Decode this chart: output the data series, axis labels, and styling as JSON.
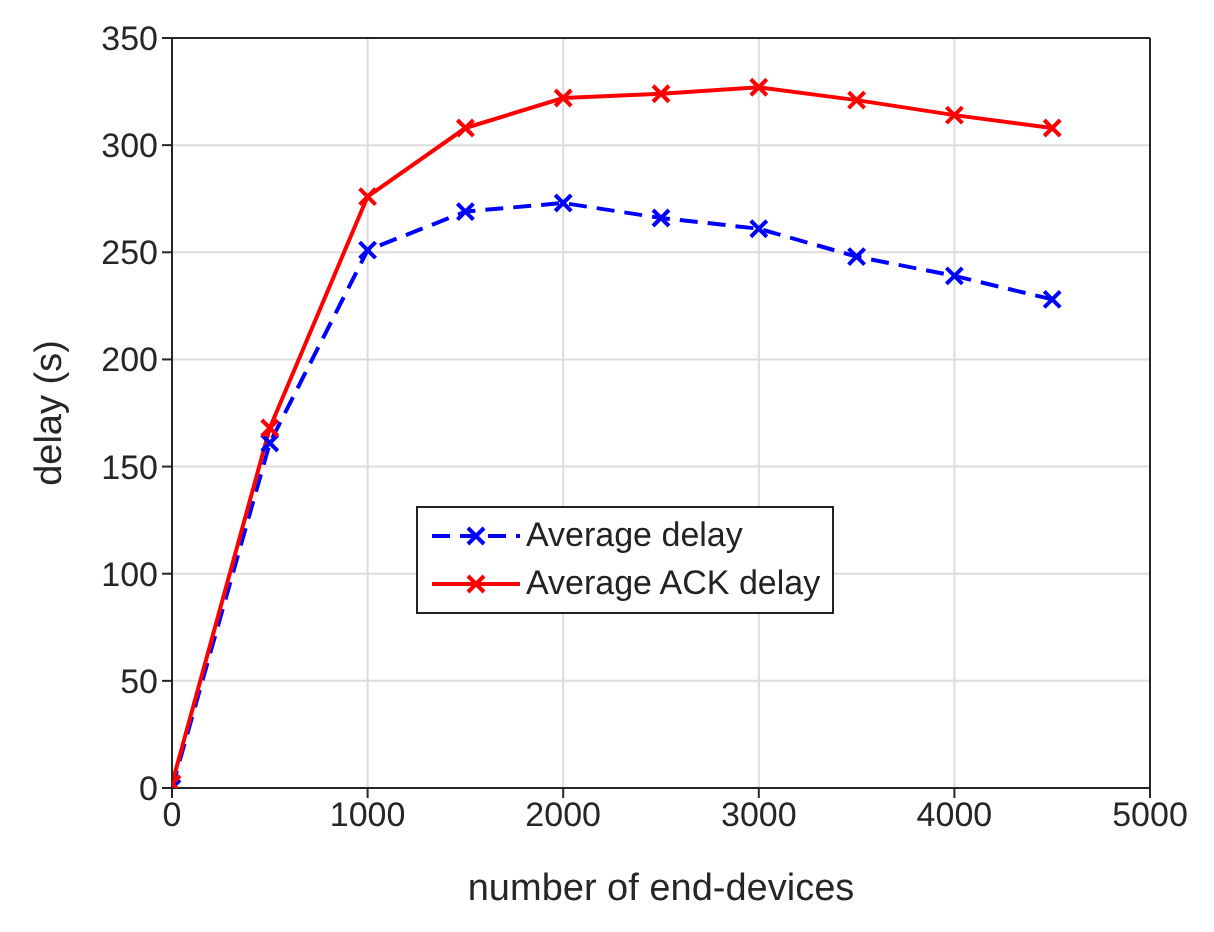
{
  "chart_data": {
    "type": "line",
    "xlabel": "number of end-devices",
    "ylabel": "delay (s)",
    "x": [
      0,
      500,
      1000,
      1500,
      2000,
      2500,
      3000,
      3500,
      4000,
      4500
    ],
    "series": [
      {
        "name": "Average delay",
        "color": "#0000ff",
        "line_style": "dashed",
        "values": [
          0,
          161,
          251,
          269,
          273,
          266,
          261,
          248,
          239,
          228
        ]
      },
      {
        "name": "Average ACK delay",
        "color": "#ff0000",
        "line_style": "solid",
        "values": [
          2,
          168,
          276,
          308,
          322,
          324,
          327,
          321,
          314,
          308
        ]
      }
    ],
    "xlim": [
      0,
      5000
    ],
    "xticks": [
      0,
      1000,
      2000,
      3000,
      4000,
      5000
    ],
    "ylim": [
      0,
      350
    ],
    "yticks": [
      0,
      50,
      100,
      150,
      200,
      250,
      300,
      350
    ],
    "grid": true,
    "legend": "center",
    "marker": "cross"
  }
}
